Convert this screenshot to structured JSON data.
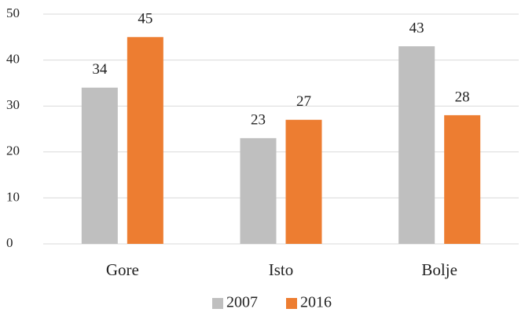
{
  "chart_data": {
    "type": "bar",
    "categories": [
      "Gore",
      "Isto",
      "Bolje"
    ],
    "series": [
      {
        "name": "2007",
        "color": "#bfbfbf",
        "values": [
          34,
          23,
          43
        ]
      },
      {
        "name": "2016",
        "color": "#ed7d31",
        "values": [
          45,
          27,
          28
        ]
      }
    ],
    "ylim": [
      0,
      50
    ],
    "yticks": [
      0,
      10,
      20,
      30,
      40,
      50
    ],
    "grid": true,
    "legend": "bottom"
  }
}
